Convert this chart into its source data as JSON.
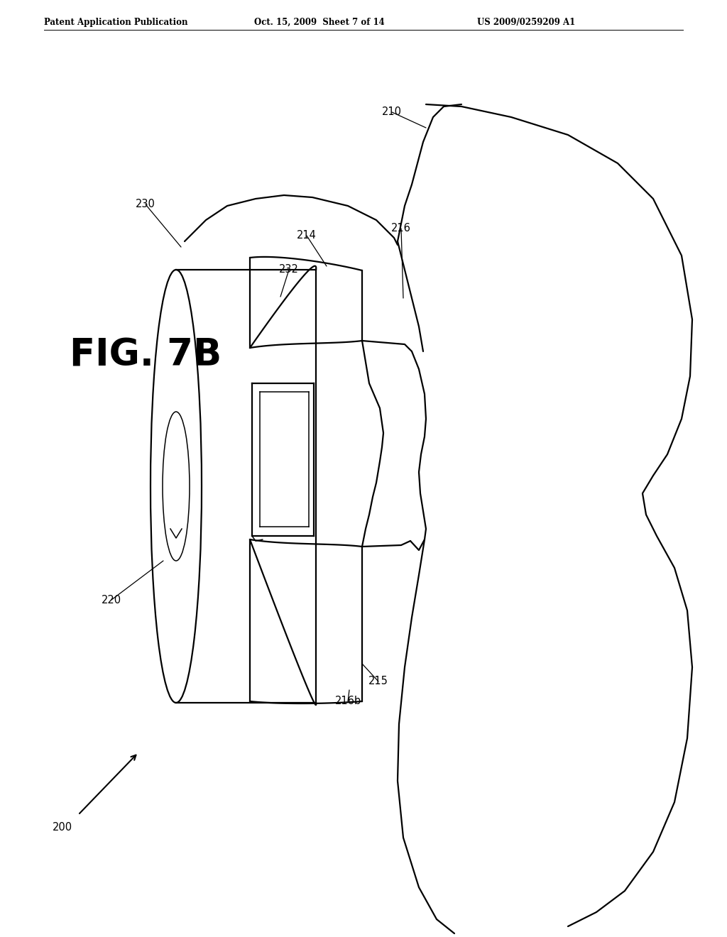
{
  "header_left": "Patent Application Publication",
  "header_center": "Oct. 15, 2009  Sheet 7 of 14",
  "header_right": "US 2009/0259209 A1",
  "fig_label": "FIG. 7B",
  "bg_color": "#ffffff",
  "line_color": "#000000",
  "lw_main": 1.6,
  "lw_thin": 1.1
}
